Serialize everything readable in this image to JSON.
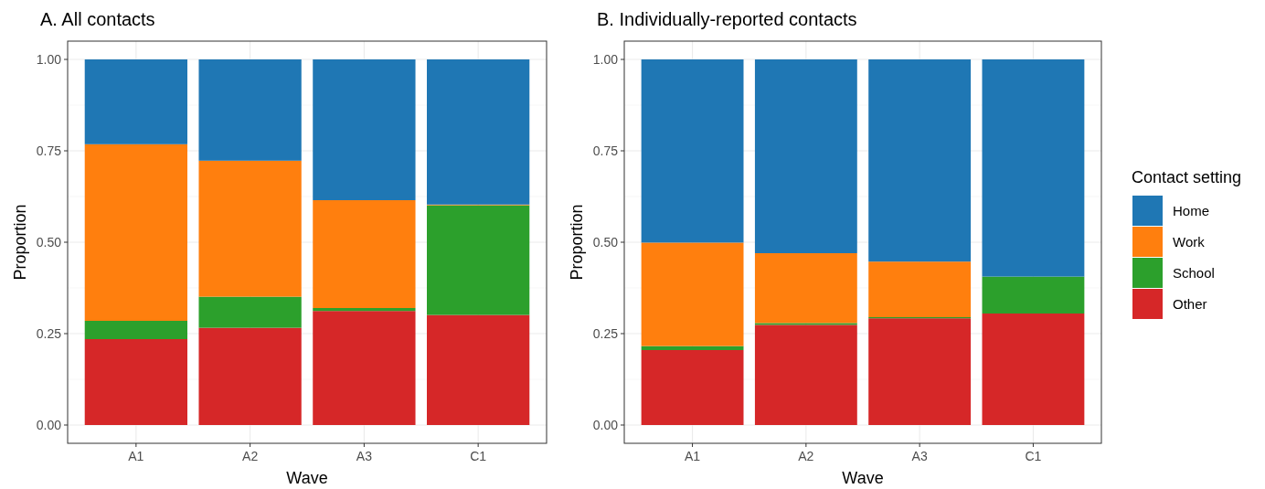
{
  "chart_data": [
    {
      "type": "bar",
      "title": "A. All contacts",
      "xlabel": "Wave",
      "ylabel": "Proportion",
      "categories": [
        "A1",
        "A2",
        "A3",
        "C1"
      ],
      "stacked": true,
      "ylim": [
        -0.05,
        1.05
      ],
      "yticks": [
        {
          "value": 0,
          "label": "0.00"
        },
        {
          "value": 0.25,
          "label": "0.25"
        },
        {
          "value": 0.5,
          "label": "0.50"
        },
        {
          "value": 0.75,
          "label": "0.75"
        },
        {
          "value": 1,
          "label": "1.00"
        }
      ],
      "grid": true,
      "legend": false,
      "series": [
        {
          "color": "#d62728",
          "values": [
            0.235,
            0.266,
            0.312,
            0.301
          ]
        },
        {
          "color": "#2ca02c",
          "values": [
            0.05,
            0.085,
            0.008,
            0.3
          ]
        },
        {
          "color": "#ff7f0e",
          "values": [
            0.483,
            0.372,
            0.295,
            0.002
          ]
        },
        {
          "color": "#1f77b4",
          "values": [
            0.232,
            0.277,
            0.385,
            0.397
          ]
        }
      ]
    },
    {
      "type": "bar",
      "title": "B. Individually-reported contacts",
      "xlabel": "Wave",
      "ylabel": "Proportion",
      "categories": [
        "A1",
        "A2",
        "A3",
        "C1"
      ],
      "stacked": true,
      "ylim": [
        -0.05,
        1.05
      ],
      "yticks": [
        {
          "value": 0,
          "label": "0.00"
        },
        {
          "value": 0.25,
          "label": "0.25"
        },
        {
          "value": 0.5,
          "label": "0.50"
        },
        {
          "value": 0.75,
          "label": "0.75"
        },
        {
          "value": 1,
          "label": "1.00"
        }
      ],
      "grid": true,
      "legend": "right",
      "legend_title": "Contact setting",
      "series": [
        {
          "name": "Other",
          "color": "#d62728",
          "values": [
            0.205,
            0.274,
            0.292,
            0.305
          ]
        },
        {
          "name": "School",
          "color": "#2ca02c",
          "values": [
            0.011,
            0.005,
            0.003,
            0.101
          ]
        },
        {
          "name": "Work",
          "color": "#ff7f0e",
          "values": [
            0.283,
            0.191,
            0.152,
            0
          ]
        },
        {
          "name": "Home",
          "color": "#1f77b4",
          "values": [
            0.501,
            0.53,
            0.553,
            0.594
          ]
        }
      ]
    }
  ]
}
